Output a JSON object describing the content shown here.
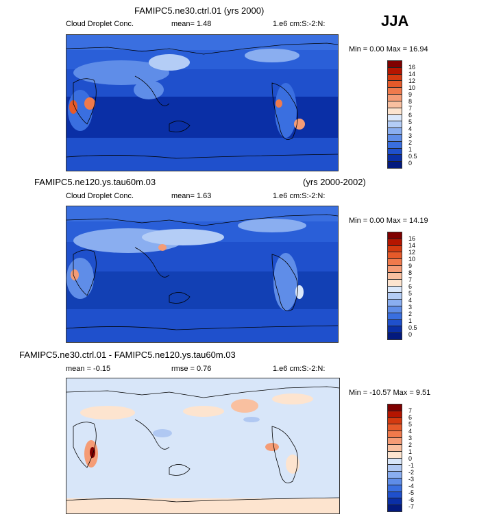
{
  "season": "JJA",
  "panels": [
    {
      "title": "FAMIPC5.ne30.ctrl.01 (yrs 2000)",
      "title_right": "",
      "left_label": "Cloud Droplet Conc.",
      "stat1": "mean=   1.48",
      "stat2": "",
      "units": "1.e6 cm:S:-2:N:",
      "minmax": "Min =   0.00 Max =  16.94",
      "levels": [
        "16",
        "14",
        "12",
        "10",
        "9",
        "8",
        "7",
        "6",
        "5",
        "4",
        "3",
        "2",
        "1",
        "0.5",
        "0"
      ],
      "colors": [
        "#7f0000",
        "#b51500",
        "#d43a10",
        "#e65a2a",
        "#f07a4c",
        "#f59c76",
        "#f9c0a0",
        "#fde4cf",
        "#dbe8fb",
        "#b4cdf6",
        "#8aaef0",
        "#5f8de8",
        "#3a6fe0",
        "#1f50cc",
        "#0a2fa6",
        "#031a7e"
      ]
    },
    {
      "title": "FAMIPC5.ne120.ys.tau60m.03",
      "title_right": "(yrs 2000-2002)",
      "left_label": "Cloud Droplet Conc.",
      "stat1": "mean=   1.63",
      "stat2": "",
      "units": "1.e6 cm:S:-2:N:",
      "minmax": "Min =   0.00 Max =  14.19",
      "levels": [
        "16",
        "14",
        "12",
        "10",
        "9",
        "8",
        "7",
        "6",
        "5",
        "4",
        "3",
        "2",
        "1",
        "0.5",
        "0"
      ],
      "colors": [
        "#7f0000",
        "#b51500",
        "#d43a10",
        "#e65a2a",
        "#f07a4c",
        "#f59c76",
        "#f9c0a0",
        "#fde4cf",
        "#dbe8fb",
        "#b4cdf6",
        "#8aaef0",
        "#5f8de8",
        "#3a6fe0",
        "#1f50cc",
        "#0a2fa6",
        "#031a7e"
      ]
    },
    {
      "title": "FAMIPC5.ne30.ctrl.01 - FAMIPC5.ne120.ys.tau60m.03",
      "title_right": "",
      "left_label": "mean =  -0.15",
      "stat1": "rmse =   0.76",
      "stat2": "",
      "units": "1.e6 cm:S:-2:N:",
      "minmax": "Min = -10.57 Max =   9.51",
      "levels": [
        "7",
        "6",
        "5",
        "4",
        "3",
        "2",
        "1",
        "0",
        "-1",
        "-2",
        "-3",
        "-4",
        "-5",
        "-6",
        "-7"
      ],
      "colors": [
        "#7f0000",
        "#b51500",
        "#d43a10",
        "#e65a2a",
        "#f07a4c",
        "#f59c76",
        "#f9c0a0",
        "#fde4cf",
        "#d8e6f9",
        "#b0c8f2",
        "#8aaef0",
        "#5f8de8",
        "#3a6fe0",
        "#1f50cc",
        "#0a2fa6",
        "#031a7e"
      ]
    }
  ]
}
